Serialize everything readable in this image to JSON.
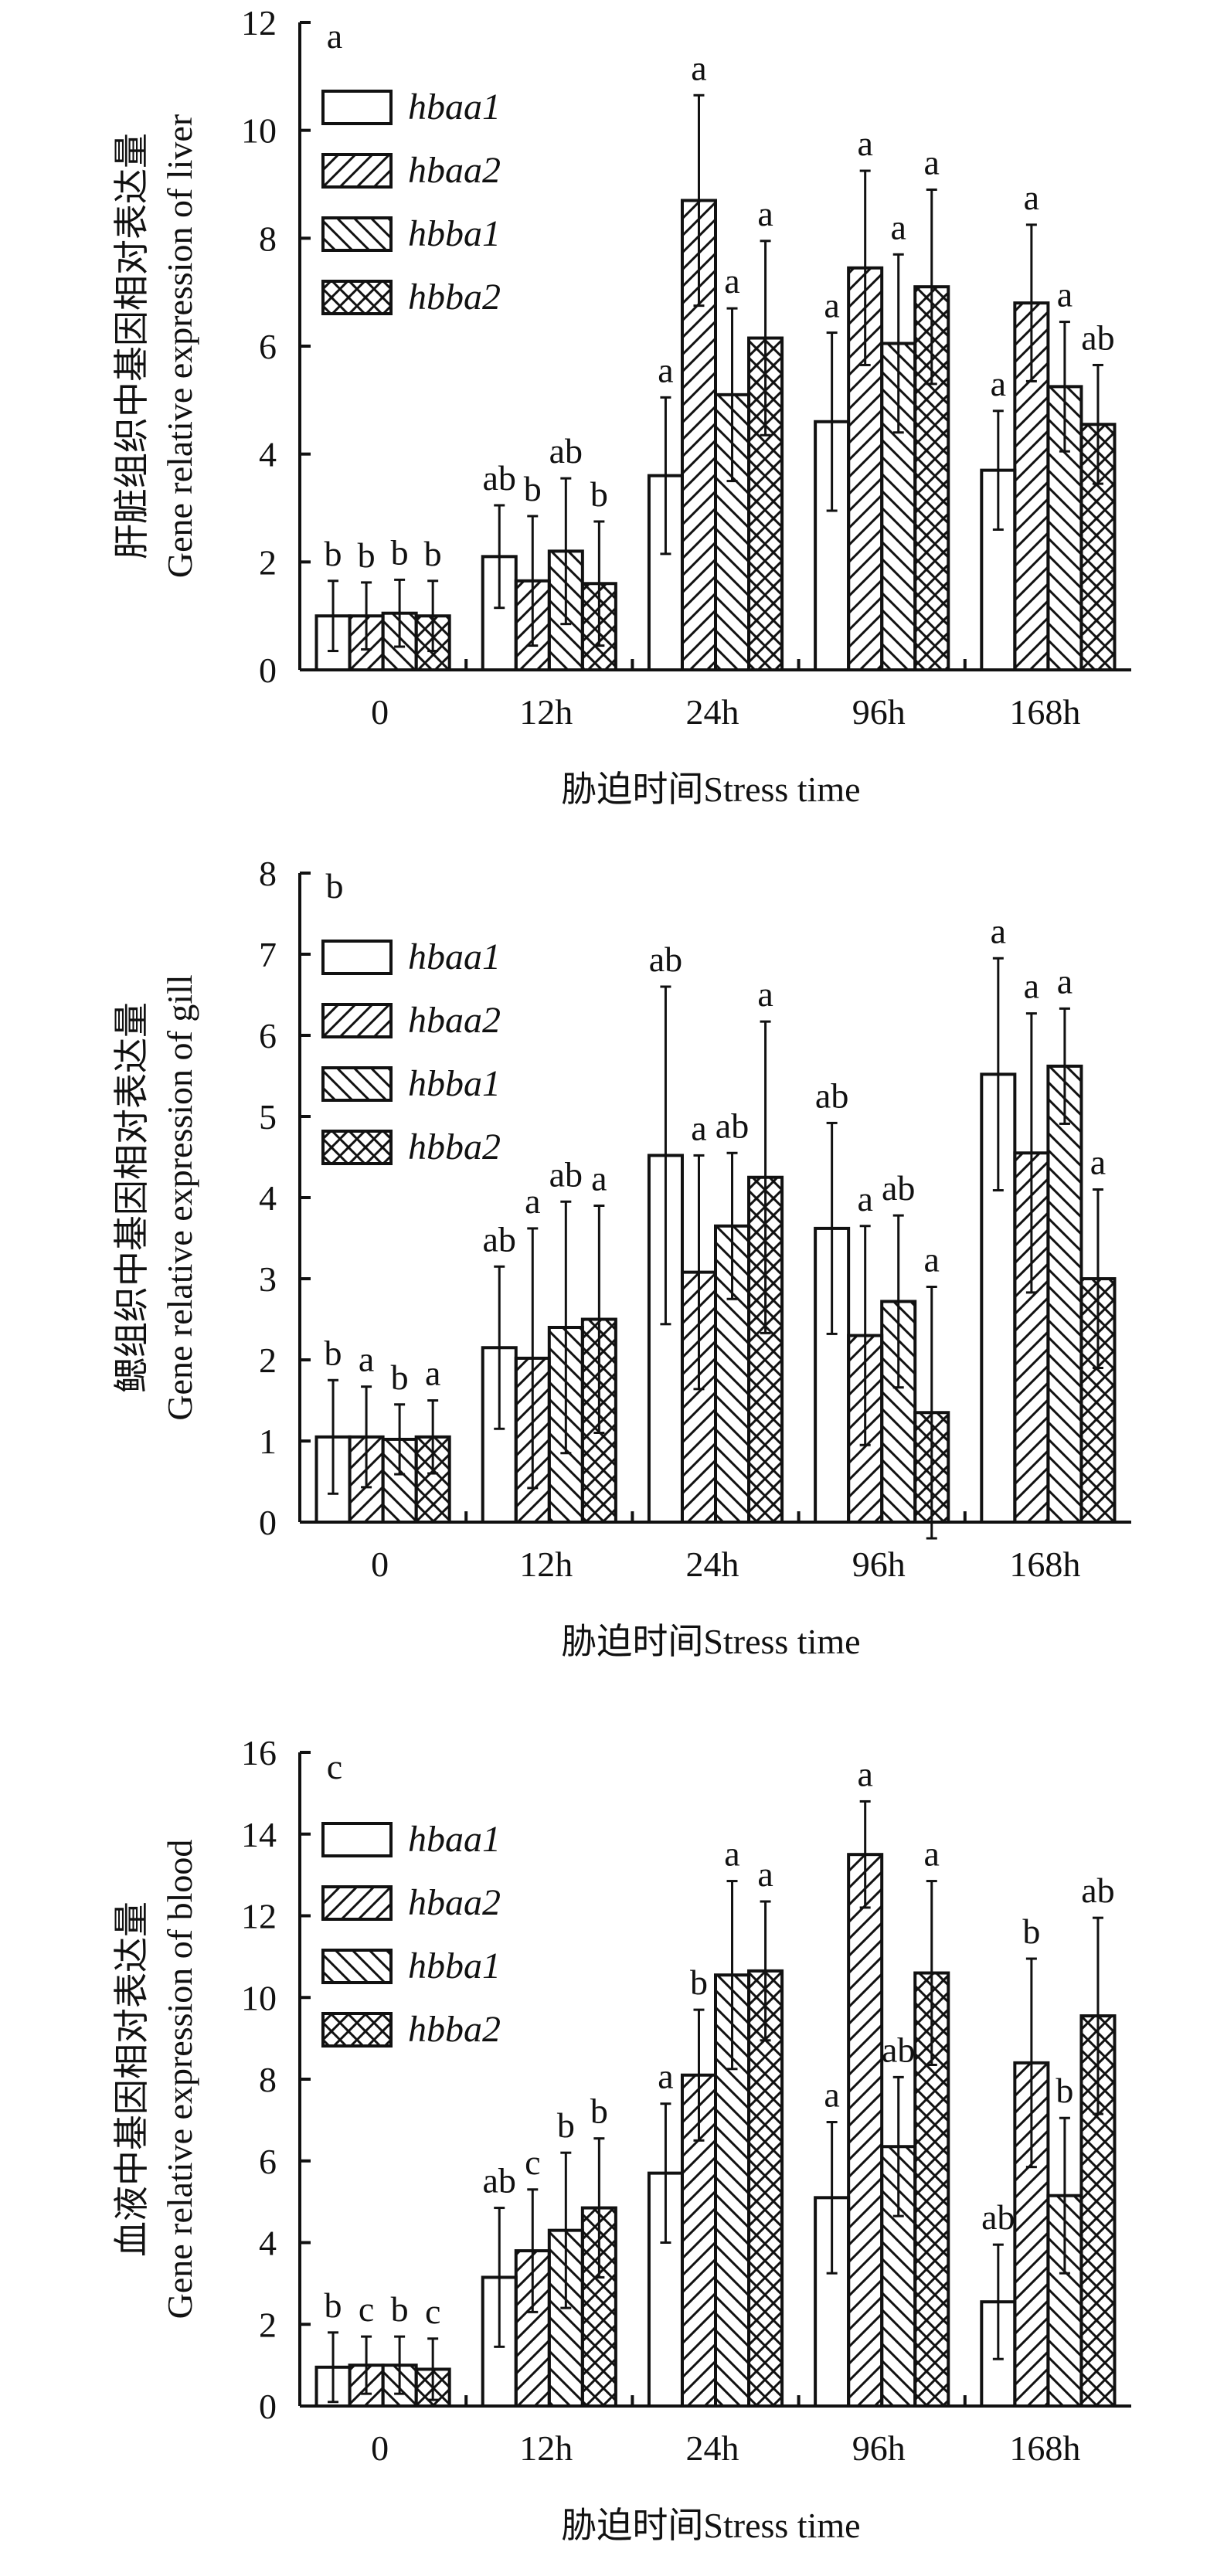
{
  "legend": [
    "hbaa1",
    "hbaa2",
    "hbba1",
    "hbba2"
  ],
  "chart_data": [
    {
      "type": "bar",
      "panel_label": "a",
      "categories": [
        "0",
        "12h",
        "24h",
        "96h",
        "168h"
      ],
      "xlabel": "胁迫时间Stress time",
      "ylabel": [
        "肝脏组织中基因相对表达量",
        "Gene relative expression of liver"
      ],
      "ylim": [
        0,
        12
      ],
      "yticks": [
        0,
        2,
        4,
        6,
        8,
        10,
        12
      ],
      "legend_position": "top-left",
      "series": [
        {
          "name": "hbaa1",
          "pattern": "none",
          "values": [
            1.0,
            2.1,
            3.6,
            4.6,
            3.7
          ],
          "errors": [
            0.65,
            0.95,
            1.45,
            1.65,
            1.1
          ],
          "letters": [
            "b",
            "ab",
            "a",
            "a",
            "a"
          ]
        },
        {
          "name": "hbaa2",
          "pattern": "forward-diagonal",
          "values": [
            1.0,
            1.65,
            8.7,
            7.45,
            6.8
          ],
          "errors": [
            0.62,
            1.2,
            1.95,
            1.8,
            1.45
          ],
          "letters": [
            "b",
            "b",
            "a",
            "a",
            "a"
          ]
        },
        {
          "name": "hbba1",
          "pattern": "back-diagonal",
          "values": [
            1.05,
            2.2,
            5.1,
            6.05,
            5.25
          ],
          "errors": [
            0.62,
            1.35,
            1.6,
            1.65,
            1.2
          ],
          "letters": [
            "b",
            "ab",
            "a",
            "a",
            "a"
          ]
        },
        {
          "name": "hbba2",
          "pattern": "crosshatch",
          "values": [
            1.0,
            1.6,
            6.15,
            7.1,
            4.55
          ],
          "errors": [
            0.65,
            1.15,
            1.8,
            1.8,
            1.1
          ],
          "letters": [
            "b",
            "b",
            "a",
            "a",
            "ab"
          ]
        }
      ]
    },
    {
      "type": "bar",
      "panel_label": "b",
      "categories": [
        "0",
        "12h",
        "24h",
        "96h",
        "168h"
      ],
      "xlabel": "胁迫时间Stress time",
      "ylabel": [
        "鳃组织中基因相对表达量",
        "Gene relative expression of gill"
      ],
      "ylim": [
        0,
        8
      ],
      "yticks": [
        0,
        1,
        2,
        3,
        4,
        5,
        6,
        7,
        8
      ],
      "legend_position": "top-left",
      "series": [
        {
          "name": "hbaa1",
          "pattern": "none",
          "values": [
            1.05,
            2.15,
            4.52,
            3.62,
            5.52
          ],
          "errors": [
            0.7,
            1.0,
            2.08,
            1.3,
            1.43
          ],
          "letters": [
            "b",
            "ab",
            "ab",
            "ab",
            "a"
          ]
        },
        {
          "name": "hbaa2",
          "pattern": "forward-diagonal",
          "values": [
            1.05,
            2.02,
            3.08,
            2.3,
            4.55
          ],
          "errors": [
            0.62,
            1.6,
            1.44,
            1.35,
            1.72
          ],
          "letters": [
            "a",
            "a",
            "a",
            "a",
            "a"
          ]
        },
        {
          "name": "hbba1",
          "pattern": "back-diagonal",
          "values": [
            1.02,
            2.4,
            3.65,
            2.72,
            5.62
          ],
          "errors": [
            0.43,
            1.55,
            0.9,
            1.06,
            0.71
          ],
          "letters": [
            "b",
            "ab",
            "ab",
            "ab",
            "a"
          ]
        },
        {
          "name": "hbba2",
          "pattern": "crosshatch",
          "values": [
            1.05,
            2.5,
            4.25,
            1.35,
            3.0
          ],
          "errors": [
            0.45,
            1.4,
            1.92,
            1.55,
            1.1
          ],
          "letters": [
            "a",
            "a",
            "a",
            "a",
            "a"
          ]
        }
      ]
    },
    {
      "type": "bar",
      "panel_label": "c",
      "categories": [
        "0",
        "12h",
        "24h",
        "96h",
        "168h"
      ],
      "xlabel": "胁迫时间Stress time",
      "ylabel": [
        "血液中基因相对表达量",
        "Gene relative expression of blood"
      ],
      "ylim": [
        0,
        16
      ],
      "yticks": [
        0,
        2,
        4,
        6,
        8,
        10,
        12,
        14,
        16
      ],
      "legend_position": "top-left",
      "series": [
        {
          "name": "hbaa1",
          "pattern": "none",
          "values": [
            0.95,
            3.15,
            5.7,
            5.1,
            2.55
          ],
          "errors": [
            0.85,
            1.7,
            1.7,
            1.85,
            1.4
          ],
          "letters": [
            "b",
            "ab",
            "a",
            "a",
            "ab"
          ]
        },
        {
          "name": "hbaa2",
          "pattern": "forward-diagonal",
          "values": [
            1.0,
            3.8,
            8.1,
            13.5,
            8.4
          ],
          "errors": [
            0.7,
            1.5,
            1.6,
            1.3,
            2.55
          ],
          "letters": [
            "c",
            "c",
            "b",
            "a",
            "b"
          ]
        },
        {
          "name": "hbba1",
          "pattern": "back-diagonal",
          "values": [
            1.0,
            4.3,
            10.55,
            6.35,
            5.15
          ],
          "errors": [
            0.7,
            1.9,
            2.3,
            1.7,
            1.9
          ],
          "letters": [
            "b",
            "b",
            "a",
            "ab",
            "b"
          ]
        },
        {
          "name": "hbba2",
          "pattern": "crosshatch",
          "values": [
            0.9,
            4.85,
            10.65,
            10.6,
            9.55
          ],
          "errors": [
            0.75,
            1.7,
            1.7,
            2.25,
            2.4
          ],
          "letters": [
            "c",
            "b",
            "a",
            "a",
            "ab"
          ]
        }
      ]
    }
  ]
}
